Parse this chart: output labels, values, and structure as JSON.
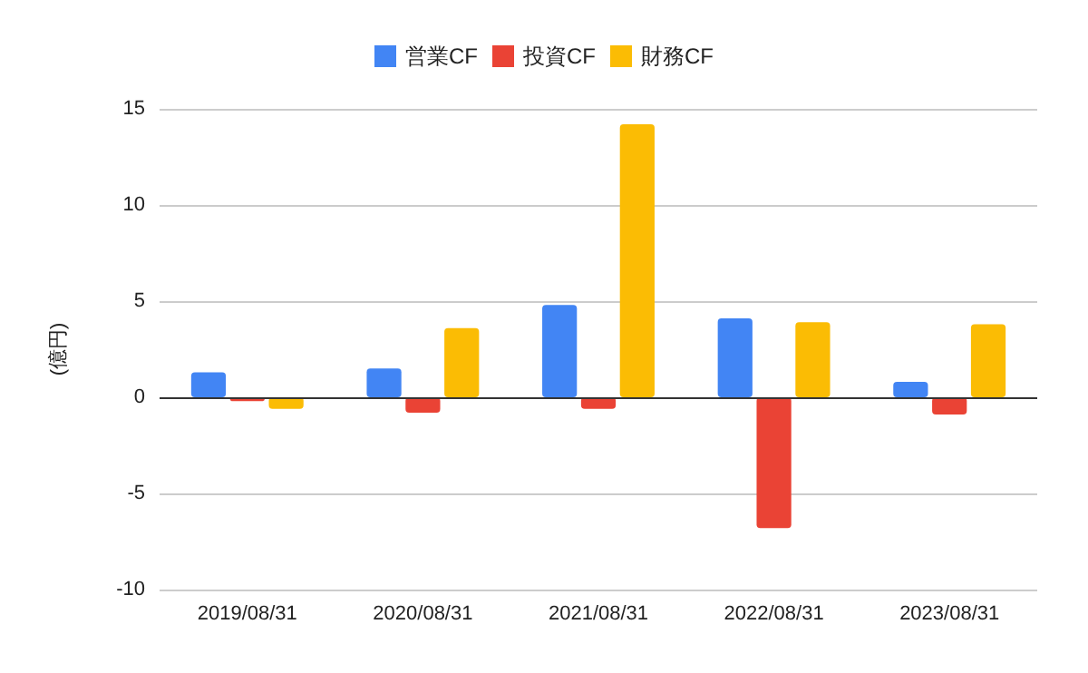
{
  "chart_data": {
    "type": "bar",
    "ylabel": "(億円)",
    "categories": [
      "2019/08/31",
      "2020/08/31",
      "2021/08/31",
      "2022/08/31",
      "2023/08/31"
    ],
    "series": [
      {
        "name": "営業CF",
        "color": "#4285f4",
        "values": [
          1.3,
          1.5,
          4.8,
          4.1,
          0.8
        ]
      },
      {
        "name": "投資CF",
        "color": "#ea4335",
        "values": [
          -0.2,
          -0.8,
          -0.6,
          -6.8,
          -0.9
        ]
      },
      {
        "name": "財務CF",
        "color": "#fbbc04",
        "values": [
          -0.6,
          3.6,
          14.2,
          3.9,
          3.8
        ]
      }
    ],
    "ylim": [
      -10,
      15
    ],
    "yticks": [
      -10,
      -5,
      0,
      5,
      10,
      15
    ],
    "grid": "y",
    "legend": "top"
  }
}
